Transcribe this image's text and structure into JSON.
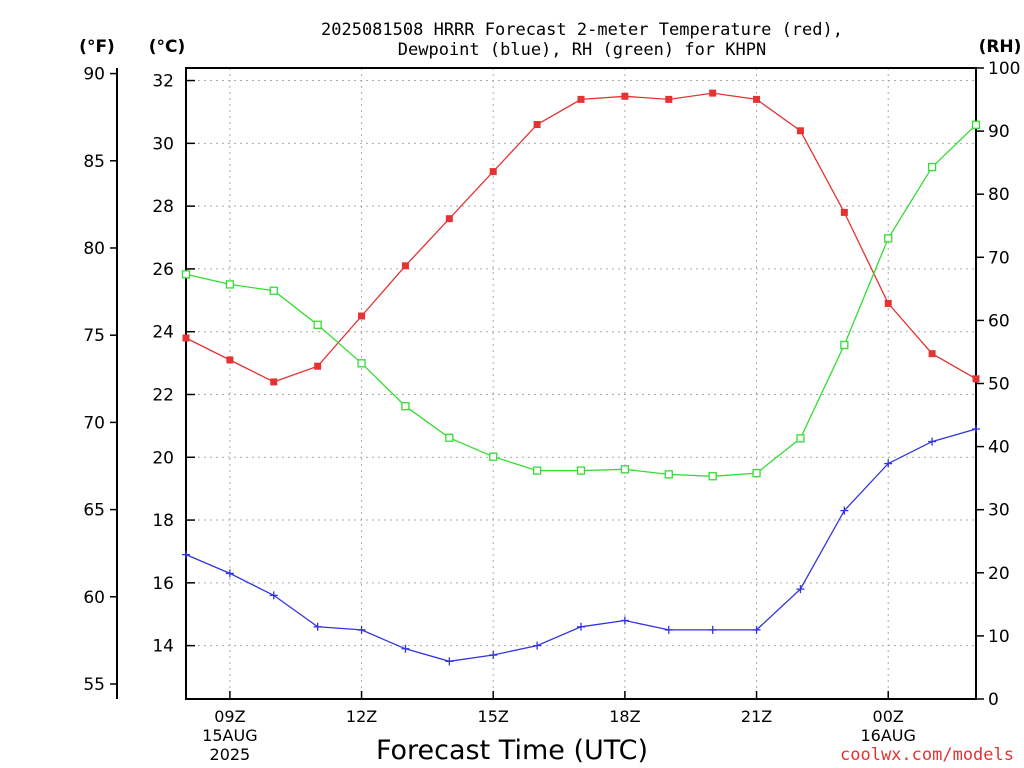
{
  "chart_data": {
    "type": "line",
    "title_line1": "2025081508 HRRR Forecast 2-meter Temperature (red),",
    "title_line2": "Dewpoint (blue), RH (green) for KHPN",
    "xlabel": "Forecast Time (UTC)",
    "credit": "coolwx.com/models",
    "units": {
      "fahrenheit": "(°F)",
      "celsius": "(°C)",
      "rh": "(RH)"
    },
    "x": [
      8,
      9,
      10,
      11,
      12,
      13,
      14,
      15,
      16,
      17,
      18,
      19,
      20,
      21,
      22,
      23,
      24,
      25,
      26
    ],
    "xlim": [
      8,
      26
    ],
    "x_ticks": [
      {
        "x": 9,
        "label": "09Z",
        "date": "15AUG",
        "year": "2025"
      },
      {
        "x": 12,
        "label": "12Z"
      },
      {
        "x": 15,
        "label": "15Z"
      },
      {
        "x": 18,
        "label": "18Z"
      },
      {
        "x": 21,
        "label": "21Z"
      },
      {
        "x": 24,
        "label": "00Z",
        "date": "16AUG"
      }
    ],
    "celsius_axis": {
      "ylim": [
        12.3,
        32.4
      ],
      "ticks": [
        14,
        16,
        18,
        20,
        22,
        24,
        26,
        28,
        30,
        32
      ]
    },
    "fahrenheit_axis": {
      "ylim": [
        54.14,
        90.32
      ],
      "ticks": [
        55,
        60,
        65,
        70,
        75,
        80,
        85,
        90
      ]
    },
    "rh_axis": {
      "ylim": [
        0,
        100
      ],
      "ticks": [
        0,
        10,
        20,
        30,
        40,
        50,
        60,
        70,
        80,
        90,
        100
      ]
    },
    "grid": true,
    "series": [
      {
        "name": "Temperature (red)",
        "axis": "celsius",
        "color": "#e53333",
        "marker": "filled-square",
        "values": [
          23.8,
          23.1,
          22.4,
          22.9,
          24.5,
          26.1,
          27.6,
          29.1,
          30.6,
          31.4,
          31.5,
          31.4,
          31.6,
          31.4,
          30.4,
          27.8,
          24.9,
          23.3,
          22.5
        ]
      },
      {
        "name": "Dewpoint (blue)",
        "axis": "celsius",
        "color": "#3333e6",
        "marker": "plus",
        "values": [
          16.9,
          16.3,
          15.6,
          14.6,
          14.5,
          13.9,
          13.5,
          13.7,
          14.0,
          14.6,
          14.8,
          14.5,
          14.5,
          14.5,
          15.8,
          18.3,
          19.8,
          20.5,
          20.9
        ]
      },
      {
        "name": "RH (green)",
        "axis": "rh",
        "color": "#33dd33",
        "marker": "open-square",
        "values": [
          67.3,
          65.7,
          64.7,
          59.3,
          53.2,
          46.4,
          41.4,
          38.4,
          36.2,
          36.2,
          36.4,
          35.6,
          35.3,
          35.8,
          41.3,
          56.1,
          73.0,
          84.3,
          91.0
        ]
      }
    ]
  }
}
